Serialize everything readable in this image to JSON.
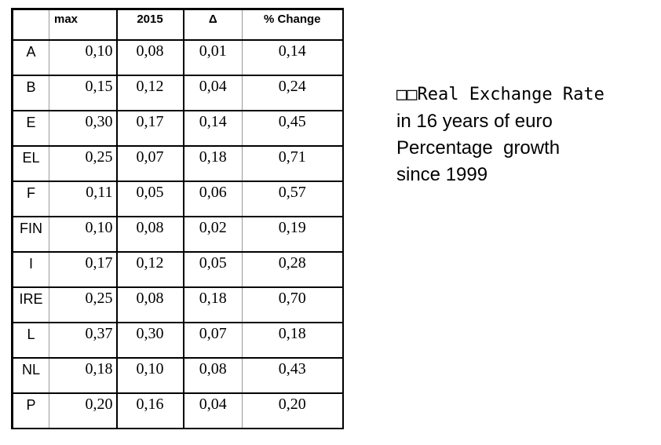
{
  "table": {
    "headers": [
      "",
      "max",
      "2015",
      "Δ",
      "% Change"
    ],
    "rows": [
      [
        "A",
        "0,10",
        "0,08",
        "0,01",
        "0,14"
      ],
      [
        "B",
        "0,15",
        "0,12",
        "0,04",
        "0,24"
      ],
      [
        "E",
        "0,30",
        "0,17",
        "0,14",
        "0,45"
      ],
      [
        "EL",
        "0,25",
        "0,07",
        "0,18",
        "0,71"
      ],
      [
        "F",
        "0,11",
        "0,05",
        "0,06",
        "0,57"
      ],
      [
        "FIN",
        "0,10",
        "0,08",
        "0,02",
        "0,19"
      ],
      [
        "I",
        "0,17",
        "0,12",
        "0,05",
        "0,28"
      ],
      [
        "IRE",
        "0,25",
        "0,08",
        "0,18",
        "0,70"
      ],
      [
        "L",
        "0,37",
        "0,30",
        "0,07",
        "0,18"
      ],
      [
        "NL",
        "0,18",
        "0,10",
        "0,08",
        "0,43"
      ],
      [
        "P",
        "0,20",
        "0,16",
        "0,04",
        "0,20"
      ]
    ]
  },
  "note": {
    "lines": [
      "□□Real Exchange Rate",
      "in 16 years of euro",
      "Percentage  growth",
      "since 1999"
    ]
  },
  "colors": {
    "background": "#ffffff",
    "text": "#000000",
    "border_strong": "#000000",
    "border_light": "#9a9a9a"
  }
}
